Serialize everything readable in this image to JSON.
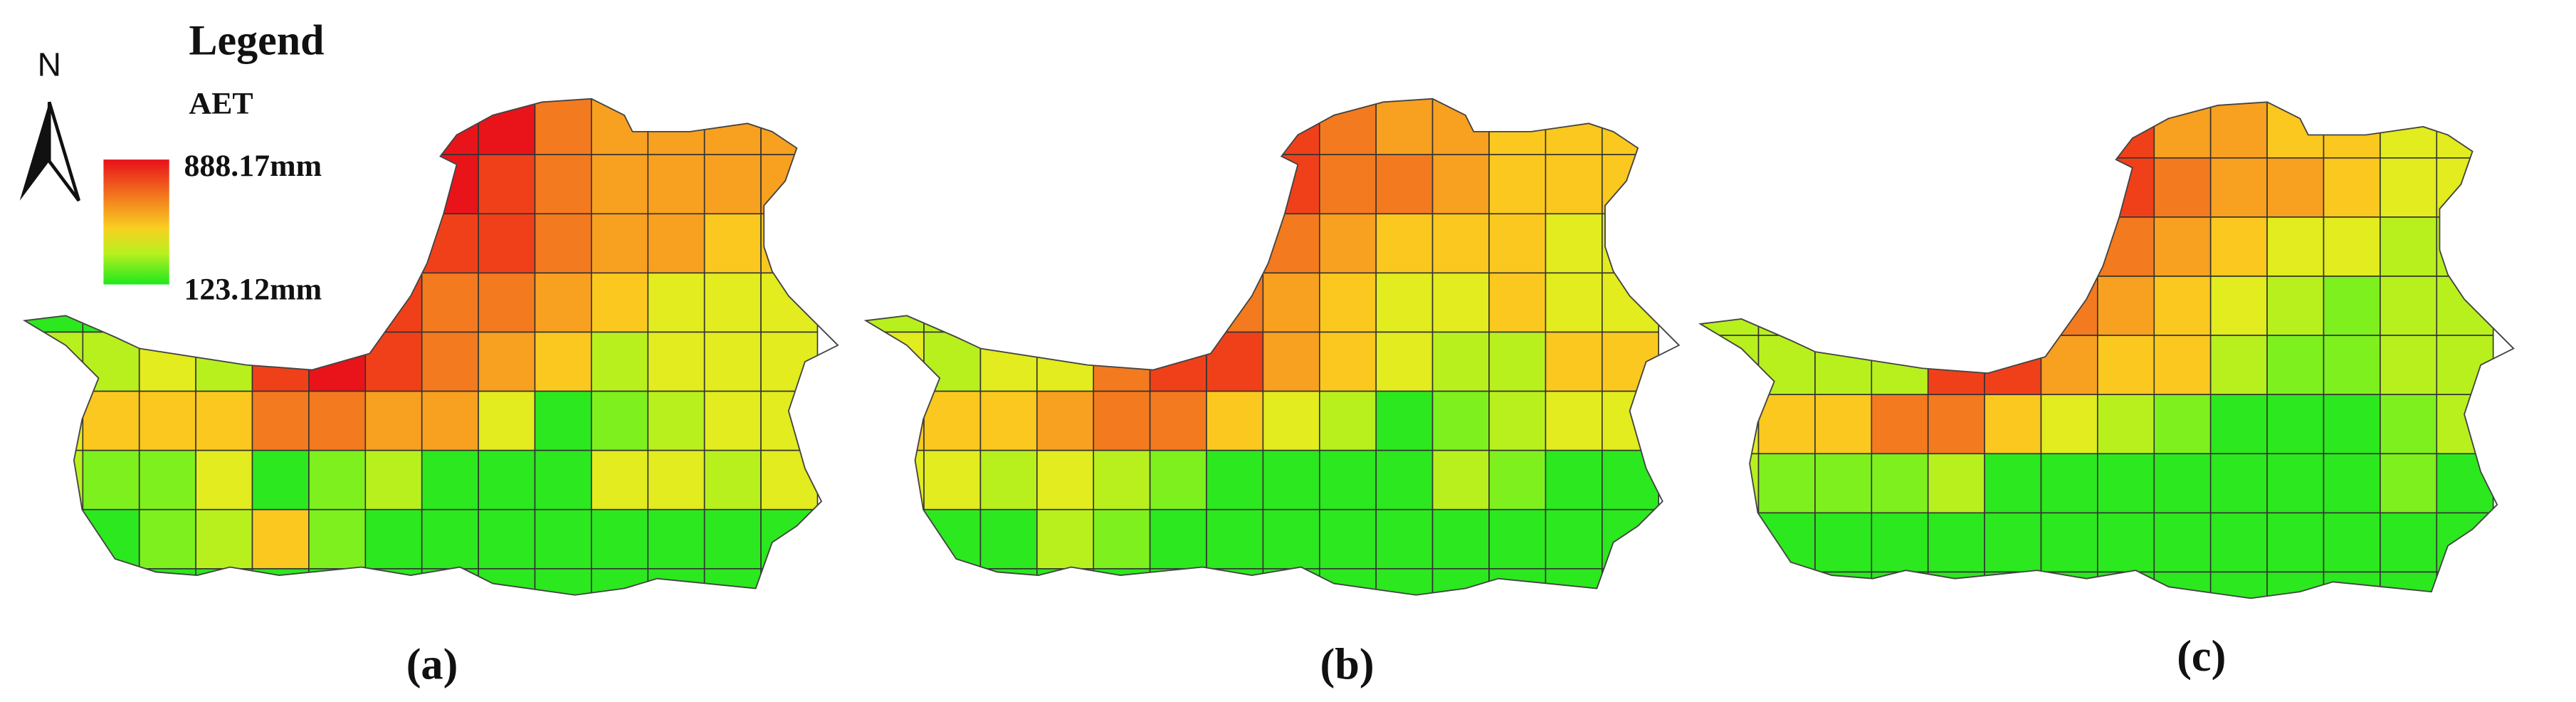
{
  "legend": {
    "title": "Legend",
    "variable": "AET",
    "max_label": "888.17mm",
    "min_label": "123.12mm"
  },
  "north_label": "N",
  "panels": [
    {
      "label": "(a)"
    },
    {
      "label": "(b)"
    },
    {
      "label": "(c)"
    }
  ]
}
